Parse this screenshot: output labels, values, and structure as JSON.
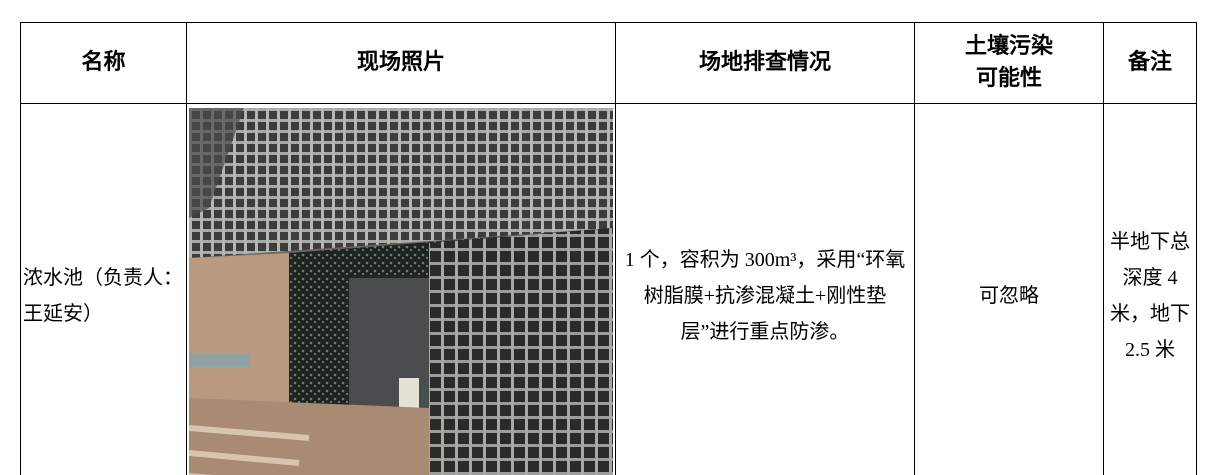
{
  "table": {
    "header": [
      "名称",
      "现场照片",
      "场地排查情况",
      "土壤污染可能性",
      "备注"
    ],
    "rows": [
      {
        "name": "浓水池（负责人：王延安）",
        "situation": "1 个，容积为 300m³，采用“环氧树脂膜+抗渗混凝土+刚性垫层”进行重点防渗。",
        "possibility": "可忽略",
        "remark": "半地下总深度 4 米，地下 2.5 米"
      }
    ]
  }
}
